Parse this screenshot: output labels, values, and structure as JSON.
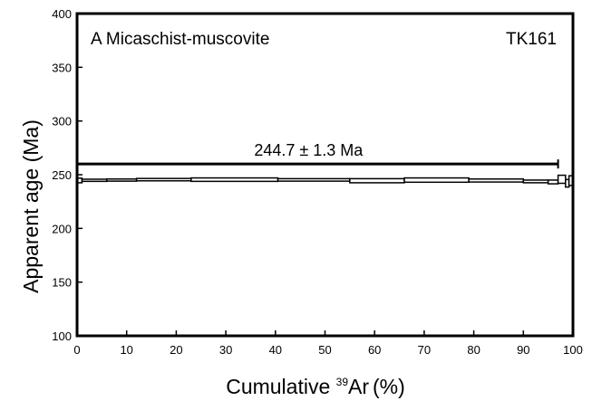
{
  "chart_data": {
    "type": "bar",
    "title": "",
    "annotation_left": "A Micaschist-muscovite",
    "annotation_right": "TK161",
    "plateau_label": "244.7 ± 1.3 Ma",
    "plateau": {
      "age": 244.7,
      "error": 1.3,
      "x_start": 0,
      "x_end": 97
    },
    "xlabel": {
      "prefix": "Cumulative ",
      "superscript": "39",
      "suffix": "Ar",
      "unit": "(%)"
    },
    "ylabel": "Apparent age (Ma)",
    "xlim": [
      0,
      100
    ],
    "ylim": [
      100,
      400
    ],
    "xticks": [
      0,
      10,
      20,
      30,
      40,
      50,
      60,
      70,
      80,
      90,
      100
    ],
    "yticks": [
      100,
      150,
      200,
      250,
      300,
      350,
      400
    ],
    "steps": [
      {
        "x0": 0,
        "x1": 1,
        "low": 242.5,
        "high": 246.8
      },
      {
        "x0": 1,
        "x1": 6,
        "low": 243.8,
        "high": 245.8
      },
      {
        "x0": 6,
        "x1": 12,
        "low": 244.0,
        "high": 246.0
      },
      {
        "x0": 12,
        "x1": 23,
        "low": 244.3,
        "high": 246.5
      },
      {
        "x0": 23,
        "x1": 40.5,
        "low": 243.8,
        "high": 247.0
      },
      {
        "x0": 40.5,
        "x1": 55,
        "low": 244.0,
        "high": 246.3
      },
      {
        "x0": 55,
        "x1": 66,
        "low": 242.5,
        "high": 246.3
      },
      {
        "x0": 66,
        "x1": 79,
        "low": 243.0,
        "high": 247.0
      },
      {
        "x0": 79,
        "x1": 90,
        "low": 243.2,
        "high": 246.0
      },
      {
        "x0": 90,
        "x1": 95,
        "low": 242.5,
        "high": 245.0
      },
      {
        "x0": 95,
        "x1": 97,
        "low": 241.5,
        "high": 245.0
      },
      {
        "x0": 97,
        "x1": 98.5,
        "low": 242.0,
        "high": 249.5
      },
      {
        "x0": 98.5,
        "x1": 99.2,
        "low": 238.5,
        "high": 245.5
      },
      {
        "x0": 99.2,
        "x1": 100,
        "low": 240.0,
        "high": 249.0
      }
    ]
  }
}
